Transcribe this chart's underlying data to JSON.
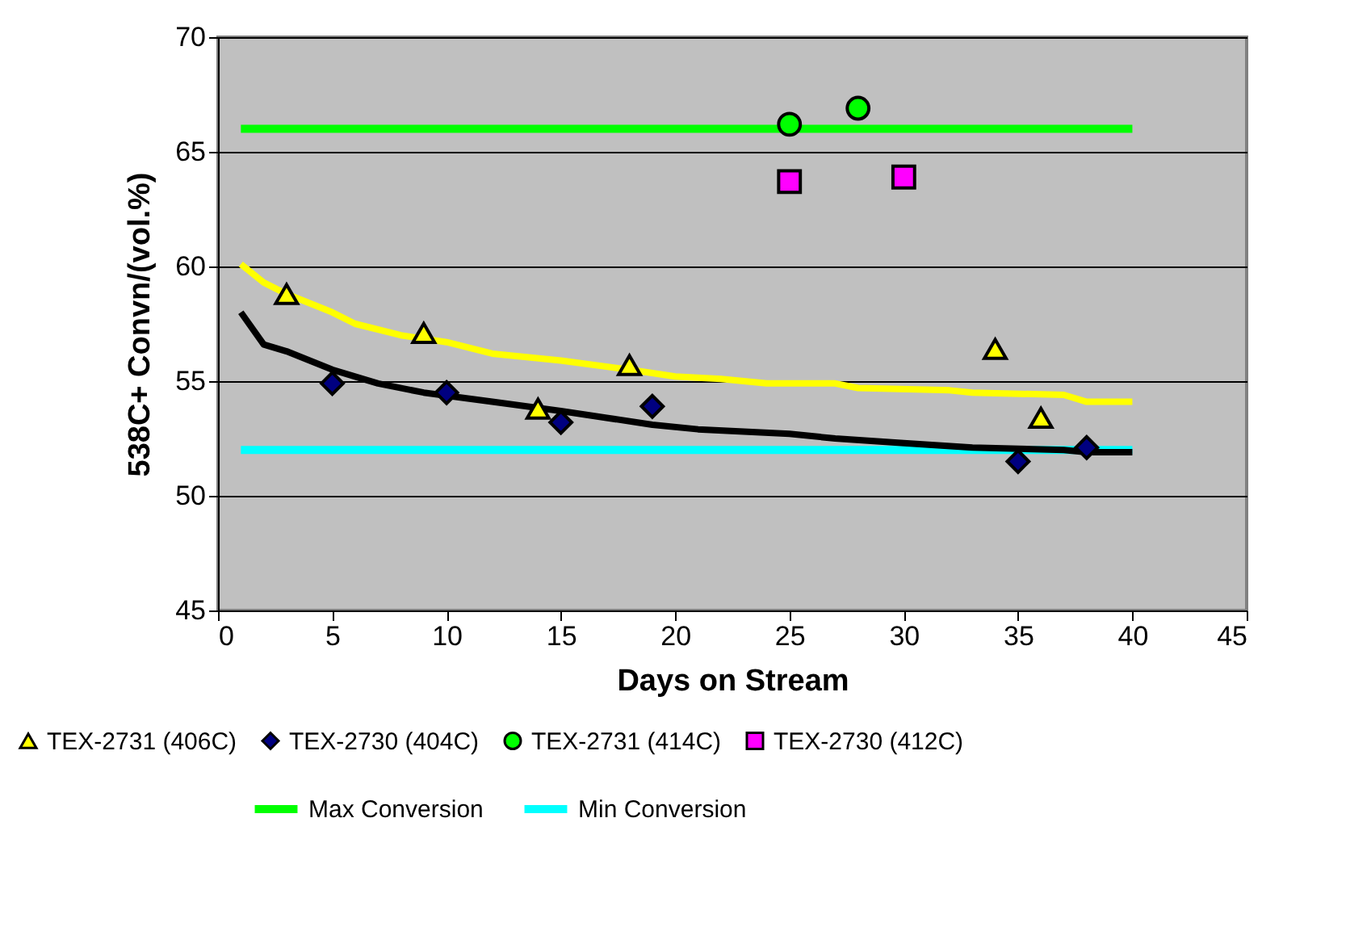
{
  "chart_data": {
    "type": "scatter",
    "xlabel": "Days on Stream",
    "ylabel": "538C+ Convn/(vol.%)",
    "xlim": [
      0,
      45
    ],
    "xticks": [
      0,
      5,
      10,
      15,
      20,
      25,
      30,
      35,
      40,
      45
    ],
    "ylim": [
      45,
      70
    ],
    "yticks": [
      45,
      50,
      55,
      60,
      65,
      70
    ],
    "grid": "y",
    "legend": "bottom",
    "series": [
      {
        "name": "TEX-2731 (406C)",
        "color": "#ffff00",
        "marker": "triangle",
        "x": [
          3,
          9,
          14,
          18,
          34,
          36
        ],
        "values": [
          58.8,
          57.1,
          53.8,
          55.7,
          56.4,
          53.4
        ]
      },
      {
        "name": "TEX-2730 (404C)",
        "color": "#000080",
        "marker": "diamond",
        "x": [
          5,
          10,
          15,
          19,
          35,
          38
        ],
        "values": [
          54.9,
          54.5,
          53.2,
          53.9,
          51.5,
          52.1
        ]
      },
      {
        "name": "TEX-2731 (414C)",
        "color": "#00ff00",
        "marker": "circle",
        "x": [
          25,
          28
        ],
        "values": [
          66.2,
          66.9
        ]
      },
      {
        "name": "TEX-2730 (412C)",
        "color": "#ff00ff",
        "marker": "square",
        "x": [
          25,
          30
        ],
        "values": [
          63.7,
          63.9
        ]
      },
      {
        "name": "Max Conversion",
        "type": "line",
        "color": "#00ff00",
        "x": [
          1,
          40
        ],
        "values": [
          66,
          66
        ]
      },
      {
        "name": "Min Conversion",
        "type": "line",
        "color": "#00ffff",
        "x": [
          1,
          40
        ],
        "values": [
          52,
          52
        ]
      },
      {
        "type": "line",
        "color": "#ffff00",
        "x": [
          1,
          2,
          3,
          5,
          6,
          8,
          10,
          12,
          15,
          18,
          20,
          22,
          24,
          27,
          28,
          32,
          33,
          37,
          38,
          40
        ],
        "values": [
          60.1,
          59.3,
          58.8,
          58,
          57.5,
          57,
          56.7,
          56.2,
          55.9,
          55.5,
          55.2,
          55.1,
          54.9,
          54.9,
          54.7,
          54.6,
          54.5,
          54.4,
          54.1,
          54.1
        ]
      },
      {
        "type": "line",
        "color": "#000000",
        "x": [
          1,
          2,
          3,
          5,
          7,
          9,
          12,
          15,
          17,
          19,
          21,
          25,
          27,
          30,
          33,
          37,
          38,
          40
        ],
        "values": [
          58,
          56.6,
          56.3,
          55.5,
          54.9,
          54.5,
          54.1,
          53.7,
          53.4,
          53.1,
          52.9,
          52.7,
          52.5,
          52.3,
          52.1,
          52,
          51.9,
          51.9
        ]
      }
    ]
  }
}
